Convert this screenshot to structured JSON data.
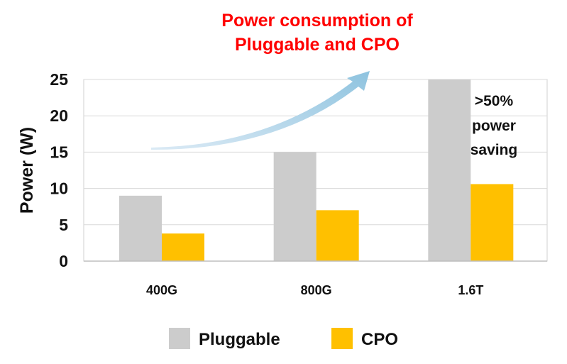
{
  "chart_data": {
    "type": "bar",
    "title": [
      "Power consumption of",
      "Pluggable and CPO"
    ],
    "ylabel": "Power (W)",
    "xlabel": "",
    "categories": [
      "400G",
      "800G",
      "1.6T"
    ],
    "ylim": [
      0,
      25
    ],
    "yticks": [
      0,
      5,
      10,
      15,
      20,
      25
    ],
    "grid": true,
    "legend_position": "bottom",
    "series": [
      {
        "name": "Pluggable",
        "values": [
          9,
          15,
          25
        ],
        "color": "#cccccc"
      },
      {
        "name": "CPO",
        "values": [
          3.8,
          7,
          10.6
        ],
        "color": "#ffc000"
      }
    ],
    "annotation": [
      ">50%",
      "power",
      "saving"
    ],
    "colors": {
      "title": "#ff0000",
      "arrow": "#92c5de",
      "grid": "#d9d9d9"
    }
  }
}
